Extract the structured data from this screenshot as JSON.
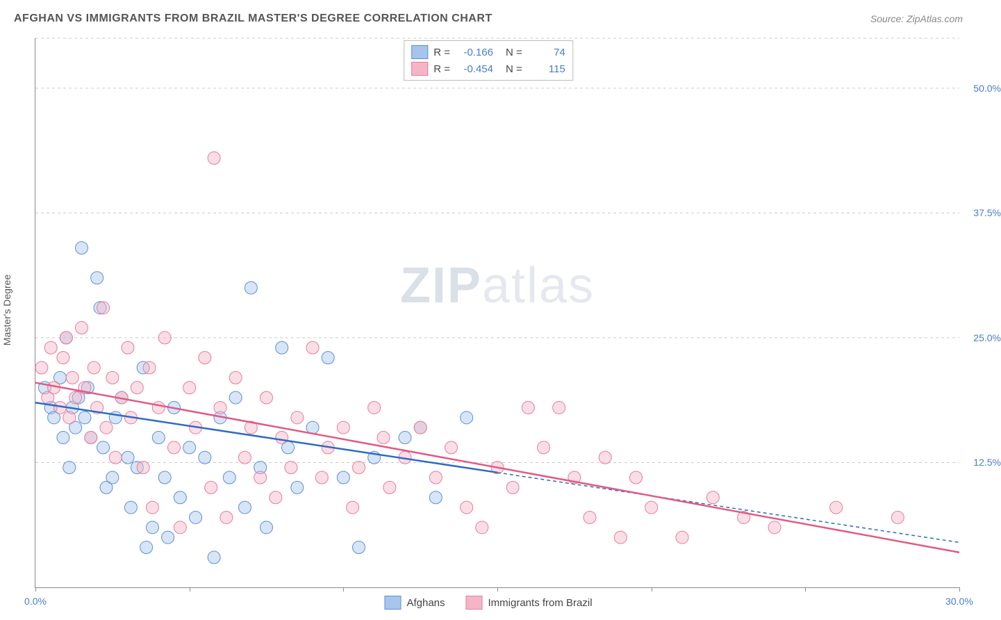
{
  "header": {
    "title": "AFGHAN VS IMMIGRANTS FROM BRAZIL MASTER'S DEGREE CORRELATION CHART",
    "source_prefix": "Source: ",
    "source": "ZipAtlas.com"
  },
  "watermark": {
    "bold": "ZIP",
    "light": "atlas"
  },
  "chart": {
    "type": "scatter",
    "ylabel": "Master's Degree",
    "xlim": [
      0,
      30
    ],
    "ylim": [
      0,
      55
    ],
    "xtick_labels": [
      {
        "v": 0,
        "t": "0.0%"
      },
      {
        "v": 30,
        "t": "30.0%"
      }
    ],
    "xtick_marks": [
      0,
      5,
      10,
      15,
      20,
      25,
      30
    ],
    "ytick_labels": [
      {
        "v": 12.5,
        "t": "12.5%"
      },
      {
        "v": 25,
        "t": "25.0%"
      },
      {
        "v": 37.5,
        "t": "37.5%"
      },
      {
        "v": 50,
        "t": "50.0%"
      }
    ],
    "grid_y": [
      12.5,
      25,
      37.5,
      50,
      55
    ],
    "background_color": "#ffffff",
    "grid_color": "#cccccc",
    "axis_color": "#888888",
    "marker_radius": 9,
    "marker_style": "circle",
    "marker_opacity": 0.45,
    "line_width": 2.5,
    "series": [
      {
        "name": "Afghans",
        "color_fill": "#a7c5ec",
        "color_stroke": "#5a8fd6",
        "line_color": "#2d6cc0",
        "R": "-0.166",
        "N": "74",
        "regression": {
          "x1": 0,
          "y1": 18.5,
          "x2": 15,
          "y2": 11.5,
          "dash_from": 15,
          "x3": 30,
          "y3": 4.5
        },
        "points": [
          [
            0.3,
            20
          ],
          [
            0.5,
            18
          ],
          [
            0.6,
            17
          ],
          [
            0.8,
            21
          ],
          [
            0.9,
            15
          ],
          [
            1.0,
            25
          ],
          [
            1.1,
            12
          ],
          [
            1.2,
            18
          ],
          [
            1.3,
            16
          ],
          [
            1.4,
            19
          ],
          [
            1.5,
            34
          ],
          [
            1.6,
            17
          ],
          [
            1.7,
            20
          ],
          [
            1.8,
            15
          ],
          [
            2.0,
            31
          ],
          [
            2.1,
            28
          ],
          [
            2.2,
            14
          ],
          [
            2.3,
            10
          ],
          [
            2.5,
            11
          ],
          [
            2.6,
            17
          ],
          [
            2.8,
            19
          ],
          [
            3.0,
            13
          ],
          [
            3.1,
            8
          ],
          [
            3.3,
            12
          ],
          [
            3.5,
            22
          ],
          [
            3.6,
            4
          ],
          [
            3.8,
            6
          ],
          [
            4.0,
            15
          ],
          [
            4.2,
            11
          ],
          [
            4.3,
            5
          ],
          [
            4.5,
            18
          ],
          [
            4.7,
            9
          ],
          [
            5.0,
            14
          ],
          [
            5.2,
            7
          ],
          [
            5.5,
            13
          ],
          [
            5.8,
            3
          ],
          [
            6.0,
            17
          ],
          [
            6.3,
            11
          ],
          [
            6.5,
            19
          ],
          [
            6.8,
            8
          ],
          [
            7.0,
            30
          ],
          [
            7.3,
            12
          ],
          [
            7.5,
            6
          ],
          [
            8.0,
            24
          ],
          [
            8.2,
            14
          ],
          [
            8.5,
            10
          ],
          [
            9.0,
            16
          ],
          [
            9.5,
            23
          ],
          [
            10.0,
            11
          ],
          [
            10.5,
            4
          ],
          [
            11.0,
            13
          ],
          [
            12.0,
            15
          ],
          [
            12.5,
            16
          ],
          [
            13.0,
            9
          ],
          [
            14.0,
            17
          ]
        ]
      },
      {
        "name": "Immigrants from Brazil",
        "color_fill": "#f4b6c7",
        "color_stroke": "#e77a9a",
        "line_color": "#e15a82",
        "R": "-0.454",
        "N": "115",
        "regression": {
          "x1": 0,
          "y1": 20.5,
          "x2": 30,
          "y2": 3.5
        },
        "points": [
          [
            0.2,
            22
          ],
          [
            0.4,
            19
          ],
          [
            0.5,
            24
          ],
          [
            0.6,
            20
          ],
          [
            0.8,
            18
          ],
          [
            0.9,
            23
          ],
          [
            1.0,
            25
          ],
          [
            1.1,
            17
          ],
          [
            1.2,
            21
          ],
          [
            1.3,
            19
          ],
          [
            1.5,
            26
          ],
          [
            1.6,
            20
          ],
          [
            1.8,
            15
          ],
          [
            1.9,
            22
          ],
          [
            2.0,
            18
          ],
          [
            2.2,
            28
          ],
          [
            2.3,
            16
          ],
          [
            2.5,
            21
          ],
          [
            2.6,
            13
          ],
          [
            2.8,
            19
          ],
          [
            3.0,
            24
          ],
          [
            3.1,
            17
          ],
          [
            3.3,
            20
          ],
          [
            3.5,
            12
          ],
          [
            3.7,
            22
          ],
          [
            3.8,
            8
          ],
          [
            4.0,
            18
          ],
          [
            4.2,
            25
          ],
          [
            4.5,
            14
          ],
          [
            4.7,
            6
          ],
          [
            5.0,
            20
          ],
          [
            5.2,
            16
          ],
          [
            5.5,
            23
          ],
          [
            5.7,
            10
          ],
          [
            5.8,
            43
          ],
          [
            6.0,
            18
          ],
          [
            6.2,
            7
          ],
          [
            6.5,
            21
          ],
          [
            6.8,
            13
          ],
          [
            7.0,
            16
          ],
          [
            7.3,
            11
          ],
          [
            7.5,
            19
          ],
          [
            7.8,
            9
          ],
          [
            8.0,
            15
          ],
          [
            8.3,
            12
          ],
          [
            8.5,
            17
          ],
          [
            9.0,
            24
          ],
          [
            9.3,
            11
          ],
          [
            9.5,
            14
          ],
          [
            10.0,
            16
          ],
          [
            10.3,
            8
          ],
          [
            10.5,
            12
          ],
          [
            11.0,
            18
          ],
          [
            11.3,
            15
          ],
          [
            11.5,
            10
          ],
          [
            12.0,
            13
          ],
          [
            12.5,
            16
          ],
          [
            13.0,
            11
          ],
          [
            13.5,
            14
          ],
          [
            14.0,
            8
          ],
          [
            14.5,
            6
          ],
          [
            15.0,
            12
          ],
          [
            15.5,
            10
          ],
          [
            16.0,
            18
          ],
          [
            16.5,
            14
          ],
          [
            17.0,
            18
          ],
          [
            17.5,
            11
          ],
          [
            18.0,
            7
          ],
          [
            18.5,
            13
          ],
          [
            19.0,
            5
          ],
          [
            19.5,
            11
          ],
          [
            20.0,
            8
          ],
          [
            21.0,
            5
          ],
          [
            22.0,
            9
          ],
          [
            23.0,
            7
          ],
          [
            24.0,
            6
          ],
          [
            26.0,
            8
          ],
          [
            28.0,
            7
          ]
        ]
      }
    ],
    "legend_bottom": [
      {
        "label": "Afghans",
        "fill": "#a7c5ec",
        "stroke": "#5a8fd6"
      },
      {
        "label": "Immigrants from Brazil",
        "fill": "#f4b6c7",
        "stroke": "#e77a9a"
      }
    ],
    "legend_top_labels": {
      "r": "R =",
      "n": "N ="
    }
  }
}
